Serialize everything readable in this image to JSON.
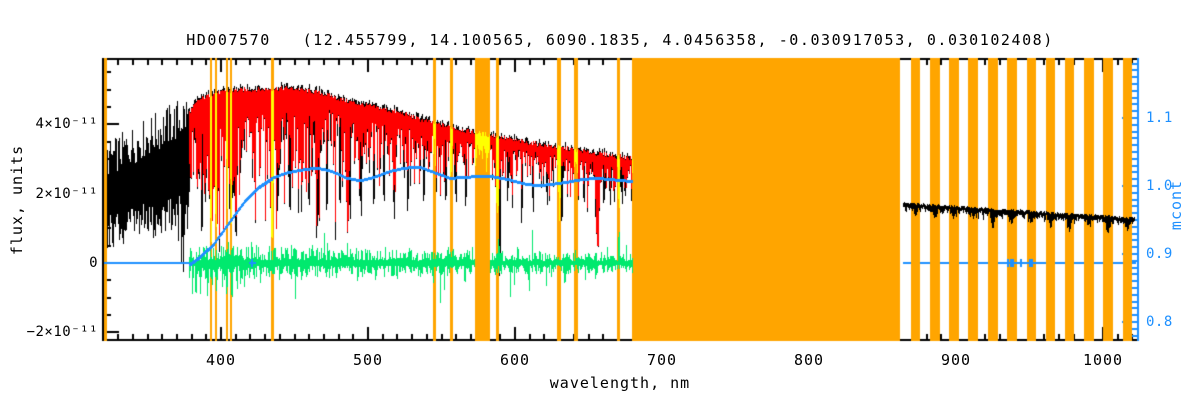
{
  "title": "HD007570   (12.455799, 14.100565, 6090.1835, 4.0456358, -0.030917053, 0.030102408)",
  "colors": {
    "background": "#FFFFFF",
    "axis": "#000000",
    "observed": "#000000",
    "fit": "#FF0000",
    "masked_points": "#FFFF00",
    "residuals": "#00E96E",
    "continuum": "#1E90FF",
    "masked_band": "#FFA500"
  },
  "axes": {
    "x": {
      "label": "wavelength, nm",
      "range_nm": [
        319.7,
        1023.8
      ],
      "major_ticks": [
        400,
        500,
        600,
        700,
        800,
        900,
        1000
      ],
      "minor_step_nm": 10
    },
    "y_left": {
      "label": "flux, units",
      "range": [
        -2.22e-11,
        5.86e-11
      ],
      "ticks": [
        {
          "value": 4e-11,
          "label": "4×10⁻¹¹"
        },
        {
          "value": 2e-11,
          "label": "2×10⁻¹¹"
        },
        {
          "value": 0,
          "label": "0"
        },
        {
          "value": -2e-11,
          "label": "−2×10⁻¹¹"
        }
      ],
      "minor_step": 5e-12
    },
    "y_right": {
      "label": "mcont",
      "range": [
        0.773,
        1.185
      ],
      "ticks": [
        {
          "value": 1.1,
          "label": "1.1"
        },
        {
          "value": 1.0,
          "label": "1.0"
        },
        {
          "value": 0.9,
          "label": "0.9"
        },
        {
          "value": 0.8,
          "label": "0.8"
        }
      ],
      "minor_step": 0.01
    }
  },
  "chart_data": {
    "type": "line",
    "title": "HD007570   (12.455799, 14.100565, 6090.1835, 4.0456358, -0.030917053, 0.030102408)",
    "xlabel": "wavelength, nm",
    "ylabel_left": "flux, units",
    "ylabel_right": "mcont",
    "flux_unit_scale": "1e-11",
    "series": [
      {
        "name": "observed-spectrum",
        "color": "black",
        "range_nm": [
          320,
          680
        ]
      },
      {
        "name": "fitted-spectrum",
        "color": "red",
        "range_nm": [
          378.4,
          680
        ]
      },
      {
        "name": "masked-spectrum-points",
        "color": "yellow"
      },
      {
        "name": "residuals",
        "color": "green",
        "range_nm": [
          378.4,
          680
        ],
        "zero_level_flux": 0
      },
      {
        "name": "continuum-mcont",
        "color": "blue"
      },
      {
        "name": "observed-spectrum-red-arm",
        "color": "black",
        "range_nm": [
          864,
          1022
        ]
      },
      {
        "name": "masked-wavelength-regions",
        "color": "orange"
      }
    ],
    "masked_regions_nm": [
      [
        320.4,
        322.3
      ],
      [
        392.2,
        393.9
      ],
      [
        395.7,
        397.3
      ],
      [
        403.2,
        404.6
      ],
      [
        406.2,
        407.6
      ],
      [
        433.9,
        436.1
      ],
      [
        543.9,
        546.1
      ],
      [
        556.0,
        557.9
      ],
      [
        572.7,
        583.1
      ],
      [
        587.2,
        589.2
      ],
      [
        628.8,
        631.5
      ],
      [
        640.0,
        643.0
      ],
      [
        669.3,
        671.5
      ],
      [
        679.8,
        862.0
      ],
      [
        869.4,
        875.5
      ],
      [
        882.3,
        889.1
      ],
      [
        895.2,
        902.0
      ],
      [
        908.2,
        915.0
      ],
      [
        921.8,
        928.6
      ],
      [
        934.7,
        941.5
      ],
      [
        948.3,
        954.4
      ],
      [
        961.2,
        967.3
      ],
      [
        974.1,
        980.3
      ],
      [
        987.1,
        993.9
      ],
      [
        1000.0,
        1006.8
      ],
      [
        1013.6,
        1019.7
      ]
    ],
    "wide_masked_band_nm": [
      572.7,
      583.1
    ],
    "uv_segment": {
      "range_nm": [
        320.4,
        378.4
      ],
      "mean_flux_keypoints": [
        [
          320,
          1.9
        ],
        [
          350,
          2.42
        ],
        [
          378,
          2.95
        ]
      ],
      "half_amplitude_keypoints": [
        [
          320,
          1.55
        ],
        [
          378,
          2.0
        ]
      ]
    },
    "continuum_envelope_flux": [
      [
        378.4,
        4.35
      ],
      [
        385,
        4.7
      ],
      [
        395,
        4.9
      ],
      [
        405,
        4.95
      ],
      [
        415,
        5.0
      ],
      [
        425,
        5.0
      ],
      [
        435,
        5.02
      ],
      [
        445,
        5.05
      ],
      [
        455,
        5.0
      ],
      [
        465,
        4.93
      ],
      [
        475,
        4.82
      ],
      [
        485,
        4.68
      ],
      [
        495,
        4.58
      ],
      [
        505,
        4.5
      ],
      [
        515,
        4.4
      ],
      [
        525,
        4.3
      ],
      [
        535,
        4.15
      ],
      [
        550,
        3.98
      ],
      [
        565,
        3.83
      ],
      [
        575,
        3.75
      ],
      [
        585,
        3.68
      ],
      [
        595,
        3.58
      ],
      [
        605,
        3.5
      ],
      [
        620,
        3.4
      ],
      [
        635,
        3.3
      ],
      [
        650,
        3.2
      ],
      [
        665,
        3.1
      ],
      [
        680,
        3.02
      ]
    ],
    "absorption_lines": [
      [
        383.8,
        0.9,
        0.5
      ],
      [
        386.5,
        0.7,
        0.42
      ],
      [
        388.9,
        1.0,
        0.62
      ],
      [
        393.4,
        1.3,
        0.88
      ],
      [
        396.9,
        1.2,
        0.85
      ],
      [
        400.8,
        0.5,
        0.3
      ],
      [
        404.6,
        0.6,
        0.38
      ],
      [
        410.2,
        1.1,
        0.72
      ],
      [
        414.0,
        0.5,
        0.3
      ],
      [
        422.7,
        0.7,
        0.45
      ],
      [
        427.1,
        0.5,
        0.32
      ],
      [
        434.5,
        1.1,
        0.93
      ],
      [
        438.4,
        0.6,
        0.4
      ],
      [
        440.5,
        0.5,
        0.3
      ],
      [
        447.0,
        0.6,
        0.35
      ],
      [
        453.0,
        0.5,
        0.3
      ],
      [
        458.2,
        0.4,
        0.28
      ],
      [
        466.0,
        0.6,
        0.38
      ],
      [
        473.0,
        0.4,
        0.3
      ],
      [
        486.1,
        1.1,
        0.82
      ],
      [
        492.0,
        0.4,
        0.28
      ],
      [
        495.7,
        0.5,
        0.35
      ],
      [
        504.2,
        0.5,
        0.33
      ],
      [
        510.5,
        0.4,
        0.3
      ],
      [
        517.3,
        0.8,
        0.48
      ],
      [
        518.4,
        0.8,
        0.52
      ],
      [
        527.0,
        0.6,
        0.42
      ],
      [
        532.8,
        0.4,
        0.3
      ],
      [
        540.0,
        0.4,
        0.28
      ],
      [
        546.0,
        0.5,
        0.35
      ],
      [
        552.0,
        0.4,
        0.3
      ],
      [
        560.5,
        0.5,
        0.35
      ],
      [
        566.5,
        0.5,
        0.38
      ],
      [
        573.0,
        0.4,
        0.25
      ],
      [
        578.0,
        0.4,
        0.22
      ],
      [
        588.2,
        1.4,
        0.64
      ],
      [
        597.0,
        0.4,
        0.28
      ],
      [
        604.5,
        0.5,
        0.4
      ],
      [
        612.5,
        0.5,
        0.38
      ],
      [
        618.0,
        0.4,
        0.3
      ],
      [
        622.5,
        0.4,
        0.35
      ],
      [
        630.3,
        0.8,
        0.62
      ],
      [
        638.0,
        0.4,
        0.3
      ],
      [
        644.0,
        0.4,
        0.3
      ],
      [
        649.8,
        0.5,
        0.35
      ],
      [
        656.3,
        1.2,
        0.85
      ],
      [
        662.0,
        0.4,
        0.3
      ],
      [
        667.5,
        0.4,
        0.32
      ],
      [
        670.8,
        0.6,
        0.5
      ],
      [
        674.5,
        0.4,
        0.3
      ]
    ],
    "observed_deep_spikes_flux": [
      [
        387,
        0.7
      ],
      [
        410.5,
        0.75
      ],
      [
        438.5,
        1.45
      ],
      [
        447,
        1.3
      ],
      [
        460,
        1.5
      ],
      [
        465.8,
        0.95
      ],
      [
        472,
        1.35
      ],
      [
        481,
        1.5
      ],
      [
        488,
        1.2
      ],
      [
        495.5,
        1.3
      ],
      [
        504,
        1.5
      ],
      [
        511,
        1.6
      ],
      [
        518,
        1.25
      ],
      [
        527,
        1.4
      ],
      [
        538,
        1.6
      ],
      [
        553,
        1.6
      ],
      [
        560,
        1.6
      ],
      [
        566.5,
        1.5
      ],
      [
        589.6,
        -0.5
      ],
      [
        595,
        1.7
      ],
      [
        604.5,
        1.1
      ],
      [
        612.5,
        1.4
      ],
      [
        622,
        1.6
      ],
      [
        631.9,
        1.0
      ],
      [
        647,
        1.55
      ],
      [
        656.3,
        0.62
      ],
      [
        660.5,
        1.5
      ],
      [
        665,
        1.65
      ],
      [
        673,
        1.6
      ]
    ],
    "residual_spikes_flux": [
      [
        380.5,
        -1.0
      ],
      [
        383,
        -1.3
      ],
      [
        386,
        -0.95
      ],
      [
        391,
        -1.15
      ],
      [
        394,
        -0.8
      ],
      [
        397,
        -0.85
      ],
      [
        401,
        -0.7
      ],
      [
        404,
        -1.2
      ],
      [
        407.5,
        -1.45
      ],
      [
        411,
        -0.95
      ],
      [
        413.5,
        -0.8
      ],
      [
        416,
        -0.7
      ],
      [
        421,
        0.8
      ],
      [
        424,
        0.6
      ],
      [
        427,
        -0.65
      ],
      [
        433,
        0.5
      ],
      [
        440,
        -0.6
      ],
      [
        448,
        0.55
      ],
      [
        455,
        -0.65
      ],
      [
        462,
        0.7
      ],
      [
        470.5,
        0.95
      ],
      [
        486,
        0.6
      ],
      [
        493,
        -0.6
      ],
      [
        505,
        -0.55
      ],
      [
        512,
        0.5
      ],
      [
        520,
        -0.5
      ],
      [
        528,
        0.55
      ],
      [
        536,
        -0.5
      ],
      [
        544.5,
        -0.6
      ],
      [
        549.5,
        -1.4
      ],
      [
        552,
        -0.8
      ],
      [
        558,
        0.5
      ],
      [
        566,
        -0.8
      ],
      [
        571,
        0.5
      ],
      [
        589,
        0.9
      ],
      [
        597,
        -1.05
      ],
      [
        602,
        0.65
      ],
      [
        609,
        -0.6
      ],
      [
        617,
        0.5
      ],
      [
        625,
        -0.5
      ],
      [
        634,
        -0.85
      ],
      [
        641,
        0.45
      ],
      [
        648,
        -0.5
      ],
      [
        655,
        -0.6
      ],
      [
        663,
        0.5
      ],
      [
        670.8,
        1.25
      ],
      [
        676,
        0.6
      ]
    ],
    "residual_sigma_flux": [
      [
        380,
        0.3
      ],
      [
        680,
        0.17
      ]
    ],
    "mcont_curve": [
      [
        378.4,
        0.885
      ],
      [
        385,
        0.895
      ],
      [
        395,
        0.915
      ],
      [
        405,
        0.945
      ],
      [
        415,
        0.975
      ],
      [
        425,
        0.998
      ],
      [
        435,
        1.012
      ],
      [
        445,
        1.02
      ],
      [
        455,
        1.024
      ],
      [
        465,
        1.027
      ],
      [
        475,
        1.022
      ],
      [
        485,
        1.012
      ],
      [
        495,
        1.008
      ],
      [
        505,
        1.014
      ],
      [
        515,
        1.022
      ],
      [
        525,
        1.027
      ],
      [
        535,
        1.028
      ],
      [
        545,
        1.02
      ],
      [
        555,
        1.012
      ],
      [
        565,
        1.013
      ],
      [
        575,
        1.015
      ],
      [
        585,
        1.014
      ],
      [
        595,
        1.01
      ],
      [
        605,
        1.004
      ],
      [
        615,
        1.001
      ],
      [
        625,
        1.003
      ],
      [
        635,
        1.006
      ],
      [
        645,
        1.01
      ],
      [
        655,
        1.012
      ],
      [
        665,
        1.01
      ],
      [
        675,
        1.008
      ],
      [
        680,
        1.007
      ]
    ],
    "mcont_flat_segments": [
      {
        "range_nm": [
          320.5,
          378.4
        ],
        "flux_level": 0
      },
      {
        "range_nm": [
          864,
          1022.5
        ],
        "flux_level": 0
      }
    ],
    "mcont_point_marks_nm": [
      421,
      935.5,
      937.5,
      939,
      944.5,
      950,
      952
    ],
    "red_arm_segment": {
      "range_nm": [
        864,
        1022
      ],
      "flux_start": 1.73,
      "flux_end": 1.3
    }
  }
}
